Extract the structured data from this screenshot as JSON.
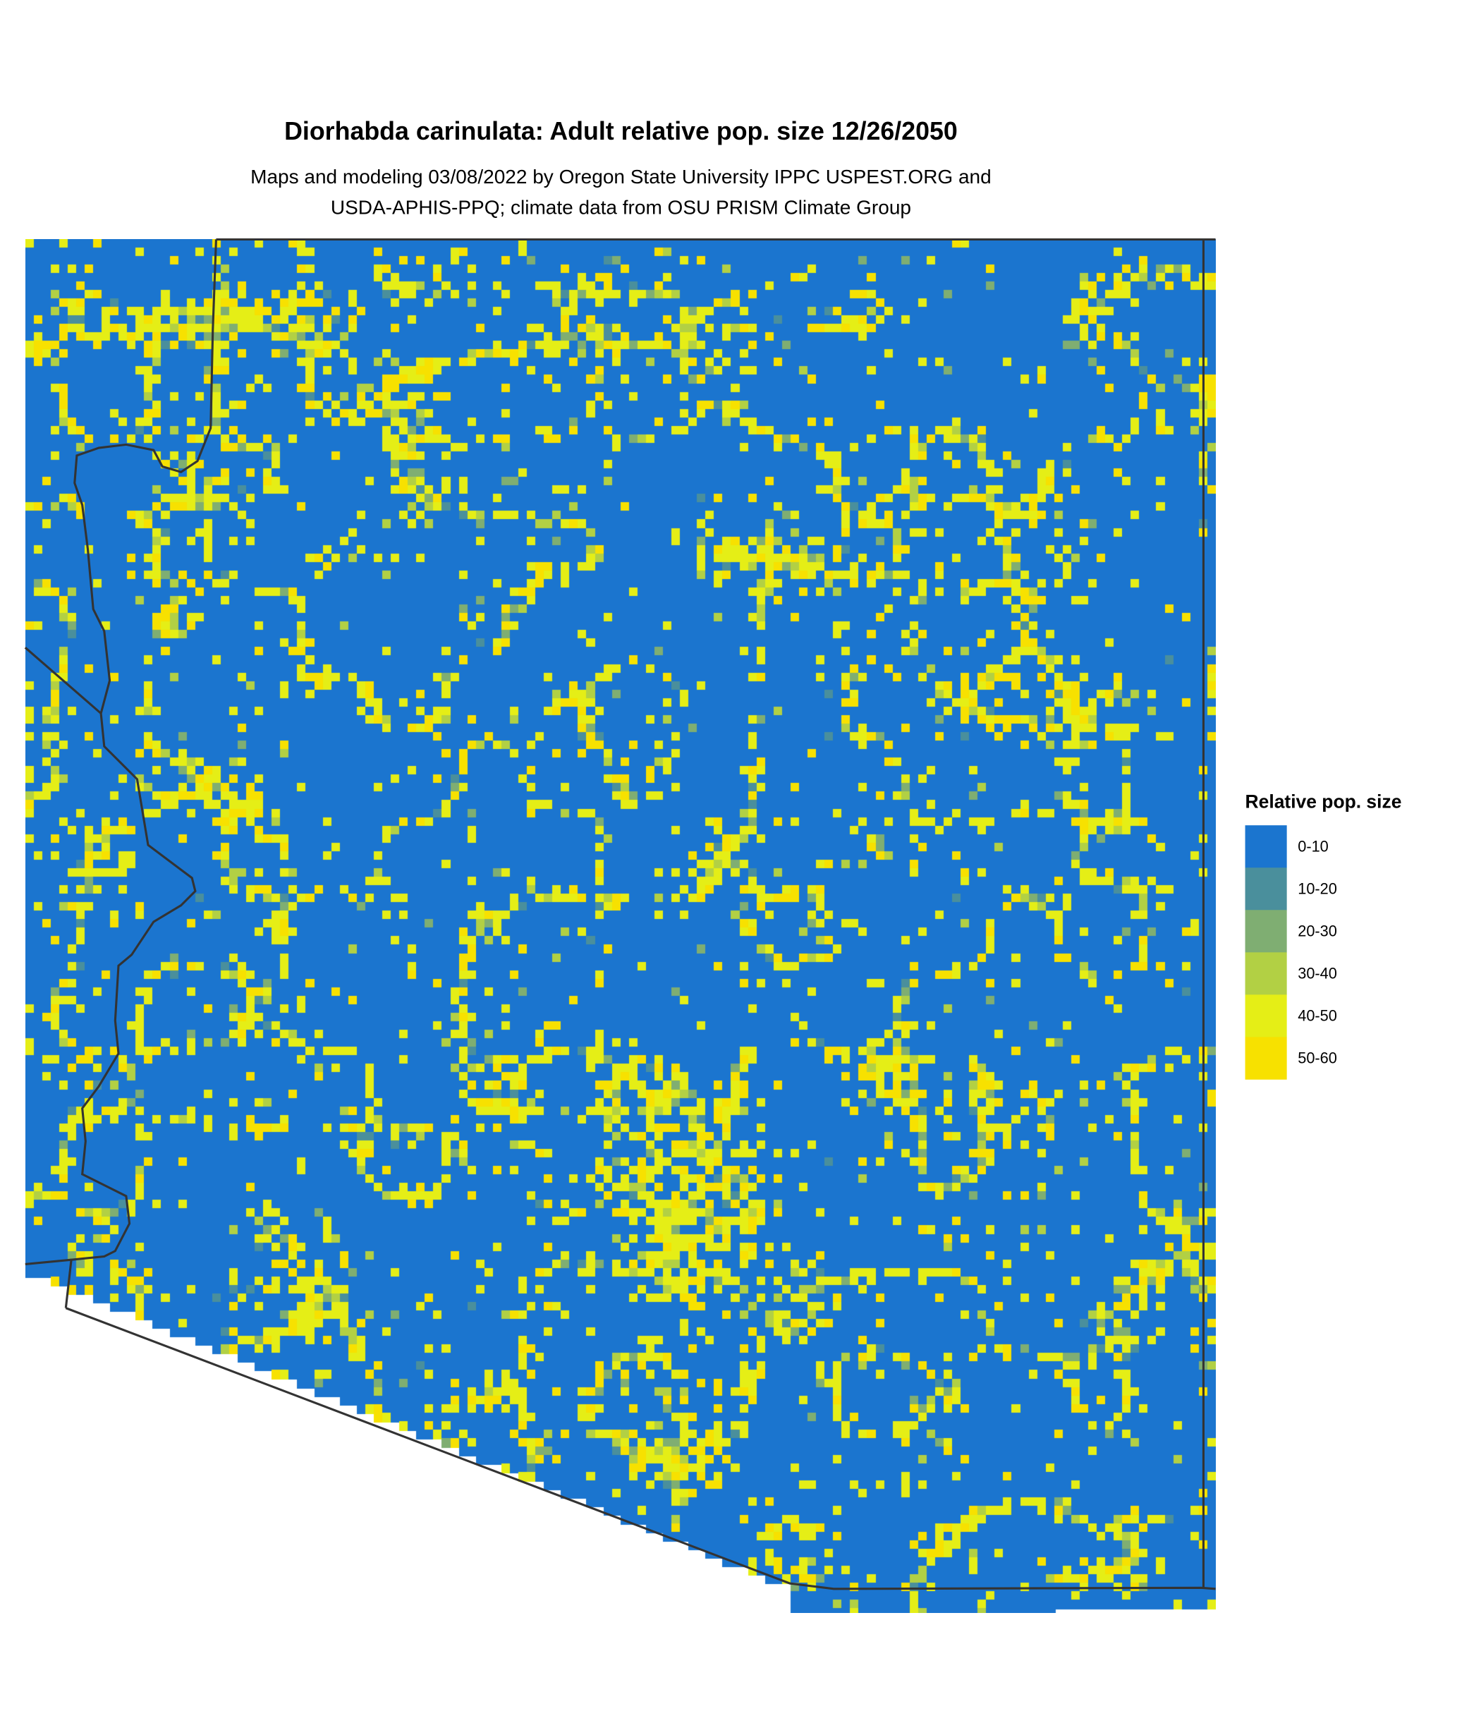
{
  "title": "Diorhabda carinulata: Adult relative pop. size 12/26/2050",
  "subtitle_line1": "Maps and modeling 03/08/2022 by Oregon State University IPPC USPEST.ORG and",
  "subtitle_line2": "USDA-APHIS-PPQ; climate data from OSU PRISM Climate Group",
  "legend": {
    "title": "Relative pop. size",
    "items": [
      {
        "label": "0-10",
        "color": "#1b75cf"
      },
      {
        "label": "10-20",
        "color": "#4a8f9c"
      },
      {
        "label": "20-30",
        "color": "#7fae72"
      },
      {
        "label": "30-40",
        "color": "#b2d044"
      },
      {
        "label": "40-50",
        "color": "#e5ee16"
      },
      {
        "label": "50-60",
        "color": "#f7e100"
      }
    ]
  },
  "map": {
    "border_color": "#333333"
  }
}
